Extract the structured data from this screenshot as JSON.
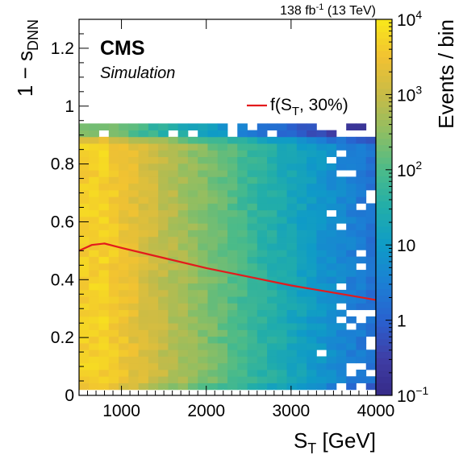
{
  "chart_data": {
    "type": "heatmap",
    "experiment_label": "CMS",
    "sublabel": "Simulation",
    "lumi_label": {
      "value": "138 fb",
      "superscript": "-1",
      "energy": "(13 TeV)"
    },
    "xlabel": {
      "main": "S",
      "sub": "T",
      "unit": " [GeV]"
    },
    "ylabel": {
      "prefix": "1 − s",
      "sub": "DNN"
    },
    "zlabel": "Events / bin",
    "xlim": [
      500,
      4000
    ],
    "ylim": [
      0,
      1.3
    ],
    "z_scale": "log",
    "zlim": [
      0.1,
      10000
    ],
    "x_ticks": [
      {
        "value": 1000,
        "label": "1000"
      },
      {
        "value": 2000,
        "label": "2000"
      },
      {
        "value": 3000,
        "label": "3000"
      },
      {
        "value": 4000,
        "label": "4000"
      }
    ],
    "y_ticks": [
      {
        "value": 0,
        "label": "0"
      },
      {
        "value": 0.2,
        "label": "0.2"
      },
      {
        "value": 0.4,
        "label": "0.4"
      },
      {
        "value": 0.6,
        "label": "0.6"
      },
      {
        "value": 0.8,
        "label": "0.8"
      },
      {
        "value": 1.0,
        "label": "1"
      },
      {
        "value": 1.2,
        "label": "1.2"
      }
    ],
    "z_ticks": [
      {
        "value": 0.1,
        "base": "10",
        "exp": "−1"
      },
      {
        "value": 1,
        "base": "1",
        "exp": ""
      },
      {
        "value": 10,
        "base": "10",
        "exp": ""
      },
      {
        "value": 100,
        "base": "10",
        "exp": "2"
      },
      {
        "value": 1000,
        "base": "10",
        "exp": "3"
      },
      {
        "value": 10000,
        "base": "10",
        "exp": "4"
      }
    ],
    "heatmap": {
      "x_bins": 30,
      "x_range": [
        500,
        4000
      ],
      "y_bins": 40,
      "y_range": [
        0.02,
        0.94
      ],
      "populated_y_range": [
        0.02,
        0.93
      ],
      "band_regions": [
        {
          "y_range": [
            0.02,
            0.05
          ],
          "description": "low edge band"
        },
        {
          "y_range": [
            0.88,
            0.93
          ],
          "description": "high edge band"
        }
      ],
      "peak_x_range": [
        500,
        900
      ],
      "peak_events_per_bin": 5000,
      "falloff_events_per_bin_at_4000": 2
    },
    "colorscale": [
      "#352a87",
      "#3f3ea6",
      "#2961cf",
      "#1b80d4",
      "#0f9bc7",
      "#21adaa",
      "#4bbb89",
      "#8ebe63",
      "#c8bb47",
      "#f1c232",
      "#f9e81a"
    ],
    "series": [
      {
        "name": "f(S_T, 30%)",
        "legend": {
          "main": "f(S",
          "sub": "T",
          "rest": ", 30%)"
        },
        "color": "#e31a1c",
        "x": [
          500,
          650,
          800,
          1000,
          1500,
          2000,
          2500,
          3000,
          3500,
          4000
        ],
        "y": [
          0.5,
          0.52,
          0.525,
          0.51,
          0.475,
          0.44,
          0.41,
          0.38,
          0.355,
          0.33
        ]
      }
    ]
  }
}
